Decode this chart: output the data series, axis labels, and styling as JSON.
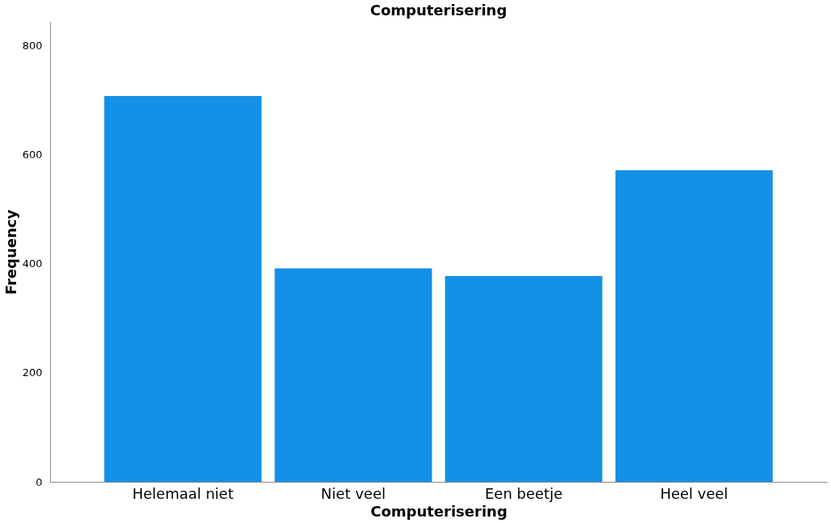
{
  "chart_data": {
    "type": "bar",
    "title": "Computerisering",
    "xlabel": "Computerisering",
    "ylabel": "Frequency",
    "categories": [
      "Helemaal niet",
      "Niet veel",
      "Een beetje",
      "Heel veel"
    ],
    "values": [
      707,
      391,
      377,
      571
    ],
    "color": "#1490e6",
    "ylim": [
      0,
      843
    ],
    "yticks": [
      0,
      200,
      400,
      600,
      800
    ],
    "grid": false
  }
}
